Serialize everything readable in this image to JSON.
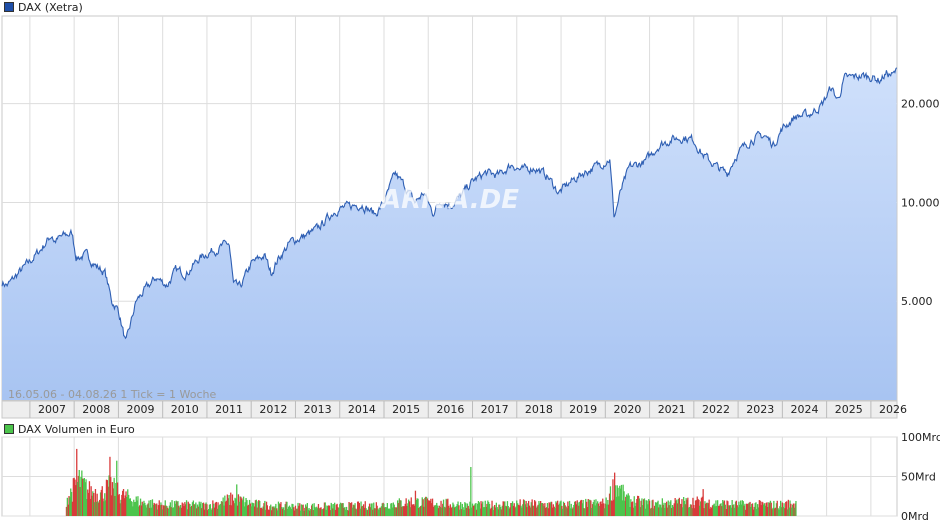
{
  "chart_data": [
    {
      "type": "area",
      "legend": "DAX (Xetra)",
      "series_color": "#2f5fb3",
      "fill_top": "#cfe0fb",
      "fill_bottom": "#a8c4f2",
      "x_tick_labels": [
        "2007",
        "2008",
        "2009",
        "2010",
        "2011",
        "2012",
        "2013",
        "2014",
        "2015",
        "2016",
        "2017",
        "2018",
        "2019",
        "2020",
        "2021",
        "2022",
        "2023",
        "2024",
        "2025",
        "2026"
      ],
      "y_scale": "log",
      "y_tick_labels": [
        "5.000",
        "10.000",
        "20.000"
      ],
      "y_ticks": [
        5000,
        10000,
        20000
      ],
      "ylim": [
        2500,
        37000
      ],
      "xlim": [
        2006.37,
        2026.59
      ],
      "grid": true,
      "watermark": "ARIVA.DE",
      "annotation": "16.05.06 - 04.08.26   1 Tick = 1 Woche",
      "points": [
        [
          2006.37,
          5700
        ],
        [
          2006.5,
          5600
        ],
        [
          2006.75,
          6100
        ],
        [
          2007.0,
          6600
        ],
        [
          2007.25,
          7200
        ],
        [
          2007.5,
          8000
        ],
        [
          2007.55,
          7600
        ],
        [
          2007.75,
          7900
        ],
        [
          2007.95,
          8050
        ],
        [
          2008.05,
          6800
        ],
        [
          2008.3,
          6900
        ],
        [
          2008.5,
          6400
        ],
        [
          2008.7,
          6100
        ],
        [
          2008.85,
          5000
        ],
        [
          2009.0,
          4700
        ],
        [
          2009.17,
          3700
        ],
        [
          2009.4,
          5000
        ],
        [
          2009.6,
          5400
        ],
        [
          2009.85,
          5900
        ],
        [
          2010.1,
          5600
        ],
        [
          2010.3,
          6200
        ],
        [
          2010.55,
          6100
        ],
        [
          2010.8,
          6700
        ],
        [
          2011.0,
          7000
        ],
        [
          2011.3,
          7300
        ],
        [
          2011.5,
          7500
        ],
        [
          2011.6,
          5600
        ],
        [
          2011.75,
          5500
        ],
        [
          2012.0,
          6500
        ],
        [
          2012.3,
          6900
        ],
        [
          2012.45,
          6100
        ],
        [
          2012.6,
          6700
        ],
        [
          2012.9,
          7600
        ],
        [
          2013.3,
          8000
        ],
        [
          2013.5,
          8300
        ],
        [
          2013.9,
          9500
        ],
        [
          2014.2,
          9700
        ],
        [
          2014.5,
          9900
        ],
        [
          2014.8,
          9200
        ],
        [
          2015.0,
          10000
        ],
        [
          2015.25,
          12200
        ],
        [
          2015.5,
          11100
        ],
        [
          2015.7,
          10000
        ],
        [
          2015.9,
          10700
        ],
        [
          2016.1,
          9300
        ],
        [
          2016.3,
          10200
        ],
        [
          2016.5,
          9800
        ],
        [
          2016.75,
          10500
        ],
        [
          2017.0,
          11600
        ],
        [
          2017.3,
          12300
        ],
        [
          2017.6,
          12100
        ],
        [
          2017.9,
          13100
        ],
        [
          2018.1,
          12500
        ],
        [
          2018.4,
          12800
        ],
        [
          2018.7,
          12000
        ],
        [
          2018.95,
          10700
        ],
        [
          2019.2,
          11500
        ],
        [
          2019.5,
          12300
        ],
        [
          2019.8,
          12900
        ],
        [
          2020.1,
          13600
        ],
        [
          2020.2,
          9000
        ],
        [
          2020.35,
          10800
        ],
        [
          2020.55,
          12800
        ],
        [
          2020.9,
          13300
        ],
        [
          2021.2,
          14900
        ],
        [
          2021.5,
          15600
        ],
        [
          2021.8,
          15800
        ],
        [
          2022.0,
          15500
        ],
        [
          2022.2,
          14000
        ],
        [
          2022.5,
          12900
        ],
        [
          2022.75,
          12200
        ],
        [
          2022.95,
          13900
        ],
        [
          2023.3,
          15600
        ],
        [
          2023.6,
          16000
        ],
        [
          2023.8,
          15000
        ],
        [
          2024.0,
          16800
        ],
        [
          2024.3,
          18300
        ],
        [
          2024.6,
          18500
        ],
        [
          2024.9,
          19900
        ],
        [
          2025.1,
          22400
        ],
        [
          2025.25,
          20500
        ],
        [
          2025.4,
          23800
        ],
        [
          2025.6,
          24100
        ],
        [
          2025.8,
          24300
        ],
        [
          2026.0,
          24200
        ],
        [
          2026.2,
          23600
        ],
        [
          2026.35,
          24700
        ],
        [
          2026.5,
          24400
        ],
        [
          2026.59,
          25200
        ]
      ]
    },
    {
      "type": "bar",
      "legend": "DAX Volumen in Euro",
      "up_color": "#4cc44c",
      "down_color": "#d83a3a",
      "y_tick_labels": [
        "0Mrd",
        "50Mrd",
        "100Mrd"
      ],
      "y_ticks": [
        0,
        50,
        100
      ],
      "ylim": [
        0,
        100
      ],
      "xlim": [
        2006.37,
        2026.59
      ],
      "grid": true,
      "volume_profile": [
        [
          2007.8,
          20
        ],
        [
          2008.1,
          45
        ],
        [
          2008.3,
          32
        ],
        [
          2008.6,
          28
        ],
        [
          2008.8,
          38
        ],
        [
          2009.0,
          28
        ],
        [
          2009.5,
          17
        ],
        [
          2010.0,
          14
        ],
        [
          2010.5,
          14
        ],
        [
          2011.0,
          13
        ],
        [
          2011.6,
          22
        ],
        [
          2012.0,
          15
        ],
        [
          2012.5,
          13
        ],
        [
          2013.0,
          12
        ],
        [
          2014.0,
          12
        ],
        [
          2015.0,
          14
        ],
        [
          2015.6,
          18
        ],
        [
          2016.0,
          17
        ],
        [
          2017.0,
          13
        ],
        [
          2018.0,
          15
        ],
        [
          2019.0,
          14
        ],
        [
          2020.0,
          16
        ],
        [
          2020.2,
          40
        ],
        [
          2020.5,
          20
        ],
        [
          2021.0,
          15
        ],
        [
          2022.0,
          18
        ],
        [
          2023.0,
          14
        ],
        [
          2024.0,
          14
        ],
        [
          2024.3,
          16
        ]
      ],
      "volume_spikes": [
        [
          2008.05,
          85
        ],
        [
          2008.8,
          75
        ],
        [
          2008.95,
          70
        ],
        [
          2016.95,
          62
        ],
        [
          2020.2,
          55
        ],
        [
          2015.7,
          32
        ],
        [
          2011.65,
          40
        ],
        [
          2022.2,
          34
        ]
      ]
    }
  ]
}
